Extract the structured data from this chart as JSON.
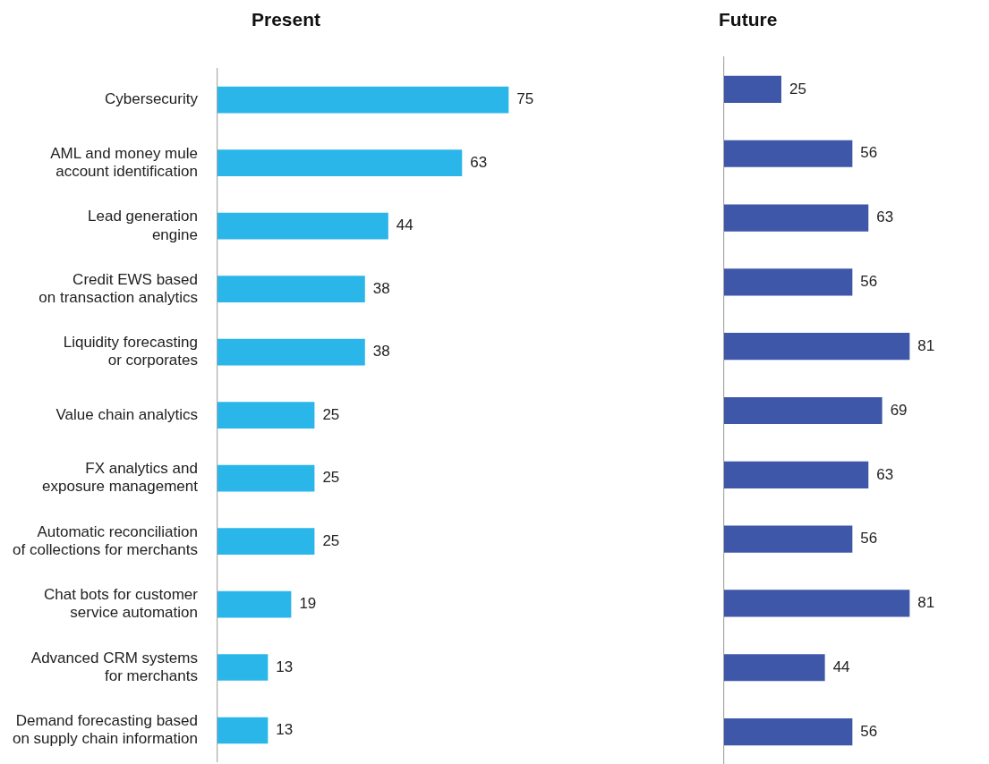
{
  "chart_data": [
    {
      "type": "bar",
      "orientation": "horizontal",
      "title": "Present",
      "categories": [
        "Cybersecurity",
        "AML and money mule\naccount identification",
        "Lead generation\nengine",
        "Credit EWS based\non transaction analytics",
        "Liquidity forecasting\nor corporates",
        "Value chain analytics",
        "FX analytics and\nexposure management",
        "Automatic reconciliation\nof collections for merchants",
        "Chat bots for customer\nservice automation",
        "Advanced CRM systems\nfor merchants",
        "Demand forecasting based\non supply chain information"
      ],
      "values": [
        75,
        63,
        44,
        38,
        38,
        25,
        25,
        25,
        19,
        13,
        13
      ],
      "color": "#2bb6ea",
      "data_labels": true,
      "legend": false,
      "tick_labels": "y"
    },
    {
      "type": "bar",
      "orientation": "horizontal",
      "title": "Future",
      "categories": [
        null,
        null,
        null,
        null,
        null,
        null,
        null,
        null,
        null,
        null,
        null
      ],
      "values": [
        25,
        56,
        63,
        56,
        81,
        69,
        63,
        56,
        81,
        44,
        56
      ],
      "color": "#3f57a8",
      "data_labels": true,
      "legend": false,
      "tick_labels": false
    }
  ]
}
